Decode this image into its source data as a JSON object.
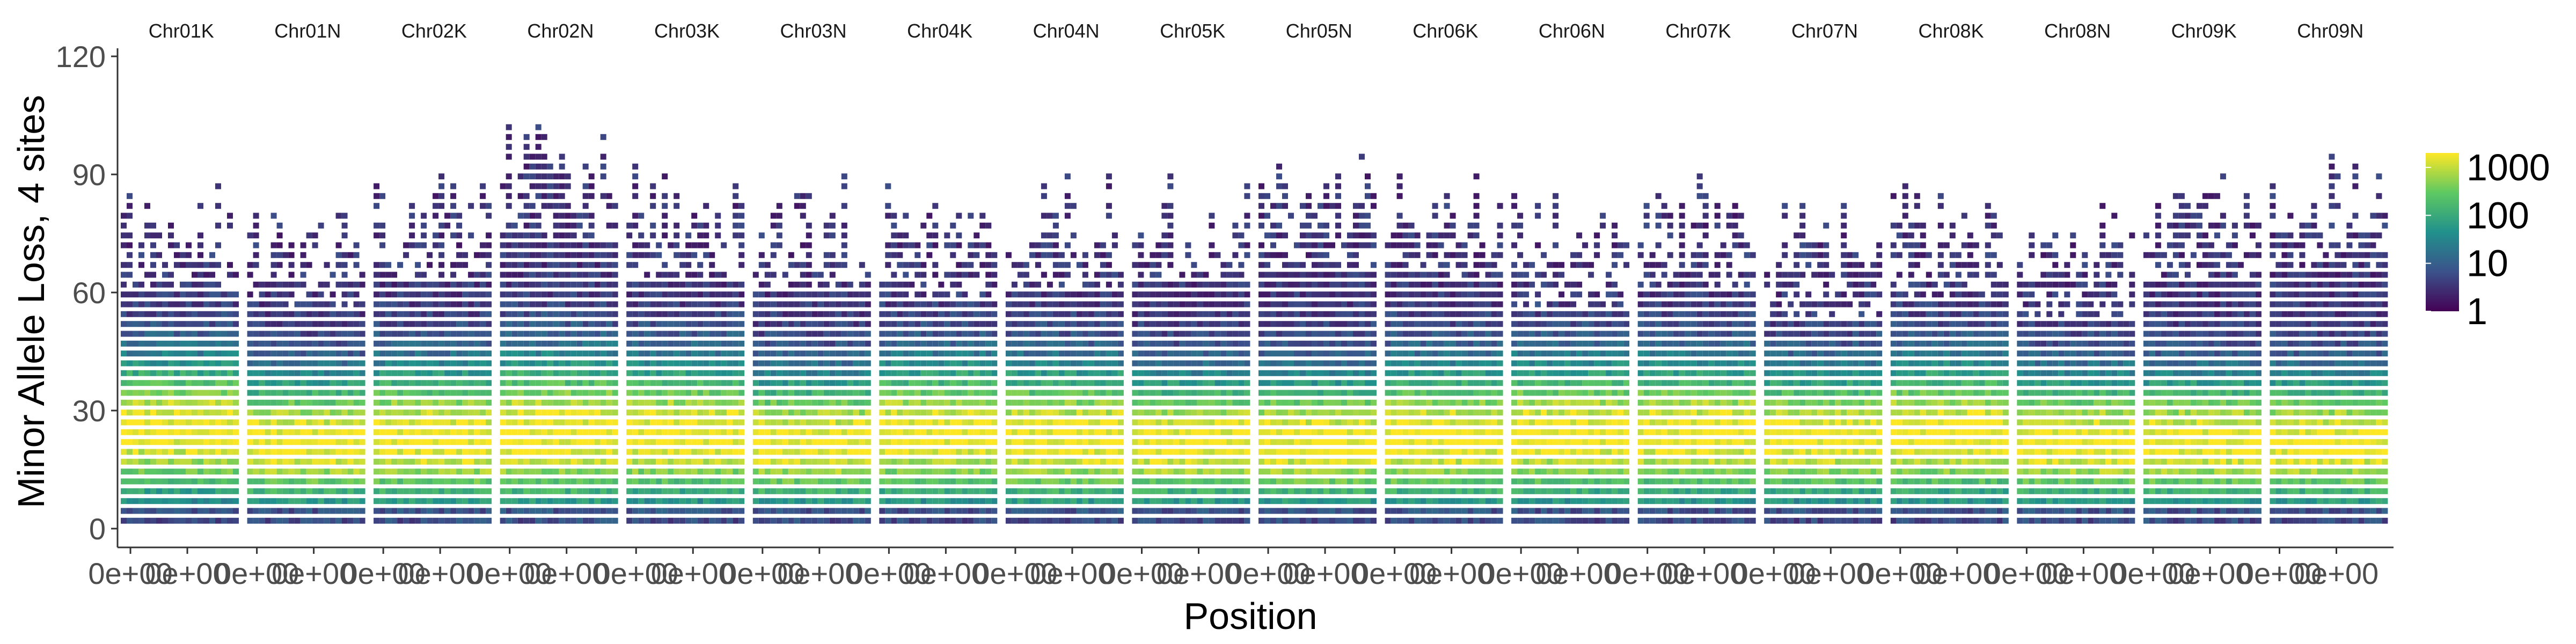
{
  "chart_data": {
    "type": "heatmap",
    "title": "",
    "xlabel": "Position",
    "ylabel": "Minor Allele Loss, 4 sites",
    "ylim": [
      0,
      120
    ],
    "yticks": [
      0,
      30,
      60,
      90,
      120
    ],
    "x_tick_text": "0e+00",
    "panels": [
      {
        "name": "Chr01K",
        "mean": 25,
        "spread": 13,
        "top": 78
      },
      {
        "name": "Chr01N",
        "mean": 22,
        "spread": 12,
        "top": 74
      },
      {
        "name": "Chr02K",
        "mean": 23,
        "spread": 13,
        "top": 80
      },
      {
        "name": "Chr02N",
        "mean": 24,
        "spread": 14,
        "top": 92
      },
      {
        "name": "Chr03K",
        "mean": 24,
        "spread": 13,
        "top": 82
      },
      {
        "name": "Chr03N",
        "mean": 22,
        "spread": 12,
        "top": 78
      },
      {
        "name": "Chr04K",
        "mean": 24,
        "spread": 13,
        "top": 76
      },
      {
        "name": "Chr04N",
        "mean": 23,
        "spread": 13,
        "top": 78
      },
      {
        "name": "Chr05K",
        "mean": 22,
        "spread": 12,
        "top": 80
      },
      {
        "name": "Chr05N",
        "mean": 22,
        "spread": 12,
        "top": 84
      },
      {
        "name": "Chr06K",
        "mean": 23,
        "spread": 13,
        "top": 80
      },
      {
        "name": "Chr06N",
        "mean": 24,
        "spread": 13,
        "top": 74
      },
      {
        "name": "Chr07K",
        "mean": 24,
        "spread": 13,
        "top": 78
      },
      {
        "name": "Chr07N",
        "mean": 23,
        "spread": 12,
        "top": 72
      },
      {
        "name": "Chr08K",
        "mean": 24,
        "spread": 13,
        "top": 76
      },
      {
        "name": "Chr08N",
        "mean": 22,
        "spread": 12,
        "top": 72
      },
      {
        "name": "Chr09K",
        "mean": 22,
        "spread": 12,
        "top": 80
      },
      {
        "name": "Chr09N",
        "mean": 22,
        "spread": 12,
        "top": 84
      }
    ],
    "legend": {
      "position": "right",
      "scale": "log10",
      "labels": [
        "1000",
        "100",
        "10",
        "1"
      ],
      "values": [
        1000,
        100,
        10,
        1
      ],
      "colors": [
        "#440154",
        "#3b528b",
        "#21918c",
        "#5ec962",
        "#fde725"
      ]
    },
    "grid": false
  }
}
